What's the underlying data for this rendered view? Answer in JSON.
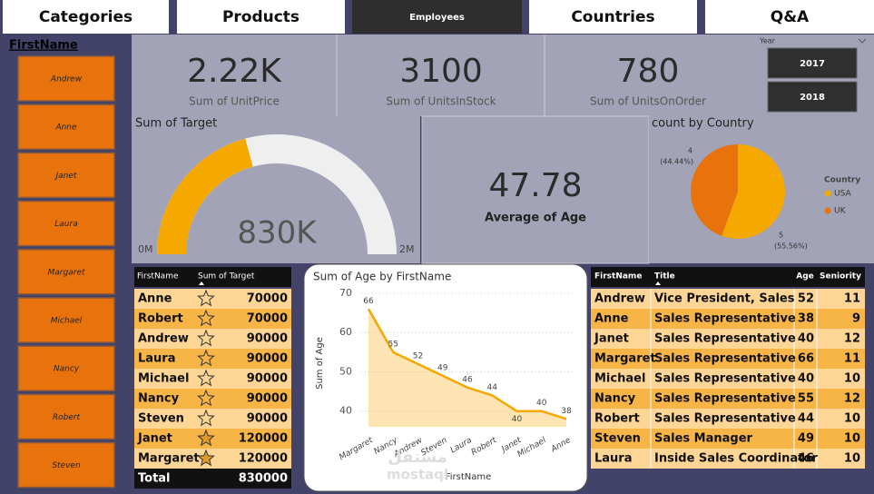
{
  "nav": [
    "Categories",
    "Products",
    "Employees",
    "Countries",
    "Q&A"
  ],
  "slicer": {
    "title": "FirstName",
    "items": [
      "Andrew",
      "Anne",
      "Janet",
      "Laura",
      "Margaret",
      "Michael",
      "Nancy",
      "Robert",
      "Steven"
    ]
  },
  "year_slicer": {
    "title": "Year",
    "items": [
      "2017",
      "2018"
    ]
  },
  "cards": [
    {
      "value": "2.22K",
      "label": "Sum of UnitPrice"
    },
    {
      "value": "3100",
      "label": "Sum of UnitsInStock"
    },
    {
      "value": "780",
      "label": "Sum of UnitsOnOrder"
    },
    {
      "value": "47.78",
      "label": "Average of Age"
    }
  ],
  "target_table": {
    "headers": [
      "FirstName",
      "Sum of Target"
    ],
    "rows": [
      [
        "Anne",
        70000
      ],
      [
        "Robert",
        70000
      ],
      [
        "Andrew",
        90000
      ],
      [
        "Laura",
        90000
      ],
      [
        "Michael",
        90000
      ],
      [
        "Nancy",
        90000
      ],
      [
        "Steven",
        90000
      ],
      [
        "Janet",
        120000
      ],
      [
        "Margaret",
        120000
      ]
    ],
    "total": [
      "Total",
      830000
    ]
  },
  "employee_table": {
    "headers": [
      "FirstName",
      "Title",
      "Age",
      "Seniority"
    ],
    "rows": [
      [
        "Andrew",
        "Vice President, Sales",
        52,
        11
      ],
      [
        "Anne",
        "Sales Representative",
        38,
        9
      ],
      [
        "Janet",
        "Sales Representative",
        40,
        12
      ],
      [
        "Margaret",
        "Sales Representative",
        66,
        11
      ],
      [
        "Michael",
        "Sales Representative",
        40,
        10
      ],
      [
        "Nancy",
        "Sales Representative",
        55,
        12
      ],
      [
        "Robert",
        "Sales Representative",
        44,
        10
      ],
      [
        "Steven",
        "Sales Manager",
        49,
        10
      ],
      [
        "Laura",
        "Inside Sales Coordinator",
        46,
        10
      ]
    ]
  },
  "watermark": {
    "arabic": "مستقل",
    "latin": "mostaql"
  },
  "chart_data": [
    {
      "type": "gauge",
      "title": "Sum of Target",
      "value": 830000,
      "value_label": "830K",
      "min": {
        "value": 0,
        "label": "0M"
      },
      "max": {
        "value": 2000000,
        "label": "2M"
      },
      "color": "#f5a800",
      "track_color": "#efefef"
    },
    {
      "type": "pie",
      "title": "count by Country",
      "legend_title": "Country",
      "categories": [
        "USA",
        "UK"
      ],
      "values": [
        5,
        4
      ],
      "percent_labels": [
        "(55.56%)",
        "(44.44%)"
      ],
      "colors": [
        "#f5a800",
        "#e8730c"
      ],
      "legend": "right"
    },
    {
      "type": "area",
      "title": "Sum of Age by FirstName",
      "x_label": "FirstName",
      "y_label": "Sum of Age",
      "categories": [
        "Margaret",
        "Nancy",
        "Andrew",
        "Steven",
        "Laura",
        "Robert",
        "Janet",
        "Michael",
        "Anne"
      ],
      "values": [
        66,
        55,
        52,
        49,
        46,
        44,
        40,
        40,
        38
      ],
      "ylim": [
        36,
        70
      ],
      "yticks": [
        40,
        50,
        60,
        70
      ],
      "grid": true,
      "color": "#f5a800"
    }
  ]
}
